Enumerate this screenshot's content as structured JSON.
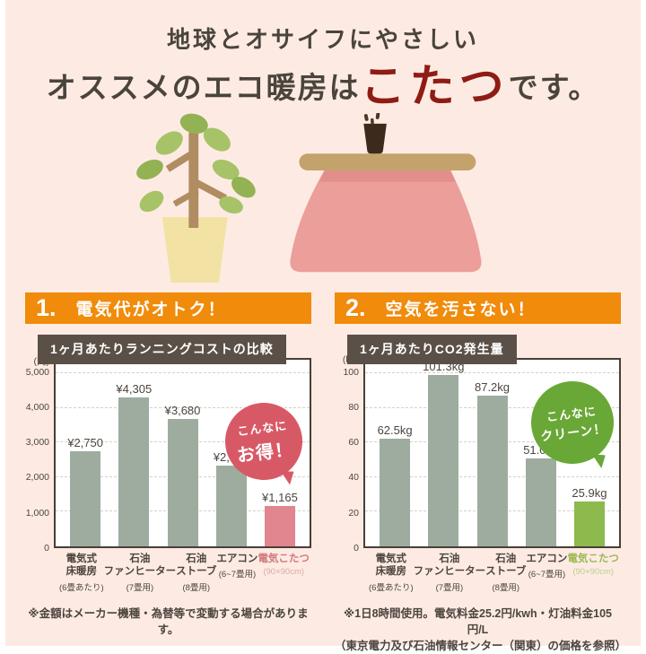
{
  "page": {
    "background": "#fdebe3",
    "accent_orange": "#f08b0b",
    "panel_brown": "#5b5047"
  },
  "header": {
    "line1": "地球とオサイフにやさしい",
    "line2_prefix": "オススメのエコ暖房は",
    "line2_highlight": "こたつ",
    "line2_suffix": "です。",
    "highlight_color": "#8e1c14"
  },
  "illustration": {
    "description": "potted plant beside a kotatsu (pink blanket, tan tabletop) with a steaming teacup on top",
    "colors": {
      "leaf": "#a6c368",
      "leaf_dark": "#93b254",
      "trunk": "#b08c62",
      "pot": "#f2e2a4",
      "blanket": "#ec9e9a",
      "tabletop": "#c4a26c",
      "cup": "#3c2b1d"
    }
  },
  "sections": [
    {
      "number": "1.",
      "banner_title": "電気代がオトク！",
      "banner_color": "#f08b0b",
      "chart_title": "1ヶ月あたりランニングコストの比較",
      "bubble_line1": "こんなに",
      "bubble_line2": "お得！",
      "bubble_color": "#d85966",
      "footnote1": "※金額はメーカー機種・為替等で変動する場合があります。"
    },
    {
      "number": "2.",
      "banner_title": "空気を汚さない！",
      "banner_color": "#f08b0b",
      "chart_title": "1ヶ月あたりCO2発生量",
      "bubble_line1": "こんなに",
      "bubble_line2": "クリーン！",
      "bubble_color": "#69a836",
      "footnote1": "※1日8時間使用。電気料金25.2円/kwh・灯油料金105円/L",
      "footnote2": "（東京電力及び石油情報センター（関東）の価格を参照）"
    }
  ],
  "chart_data": [
    {
      "type": "bar",
      "title": "1ヶ月あたりランニングコストの比較",
      "ylabel": "(円)",
      "categories": [
        [
          "電気式",
          "床暖房"
        ],
        [
          "石油",
          "ファンヒーター"
        ],
        [
          "石油",
          "ストーブ"
        ],
        [
          "エアコン"
        ],
        [
          "電気こたつ"
        ]
      ],
      "category_notes": [
        "(6畳あたり)",
        "(7畳用)",
        "(8畳用)",
        "(6~7畳用)",
        "(90×90cm)"
      ],
      "values": [
        2750,
        4305,
        3680,
        2335,
        1165
      ],
      "value_labels": [
        "¥2,750",
        "¥4,305",
        "¥3,680",
        "¥2,335",
        "¥1,165"
      ],
      "yticks": [
        0,
        1000,
        2000,
        3000,
        4000,
        5000
      ],
      "ytick_labels": [
        "0",
        "1,000",
        "2,000",
        "3,000",
        "4,000",
        "5,000"
      ],
      "ylim": [
        0,
        5400
      ],
      "grid": "horizontal dashed",
      "legend": "none",
      "bar_color": "#9dac9e",
      "highlight_index": 4,
      "highlight_color": "#e1858e"
    },
    {
      "type": "bar",
      "title": "1ヶ月あたりCO2発生量",
      "ylabel": "(kg)",
      "categories": [
        [
          "電気式",
          "床暖房"
        ],
        [
          "石油",
          "ファンヒーター"
        ],
        [
          "石油",
          "ストーブ"
        ],
        [
          "エアコン"
        ],
        [
          "電気こたつ"
        ]
      ],
      "category_notes": [
        "(6畳あたり)",
        "(7畳用)",
        "(8畳用)",
        "(6~7畳用)",
        "(90×90cm)"
      ],
      "values": [
        62.5,
        101.3,
        87.2,
        51.0,
        25.9
      ],
      "value_labels": [
        "62.5kg",
        "101.3kg",
        "87.2kg",
        "51.0kg",
        "25.9kg"
      ],
      "yticks": [
        0,
        20,
        40,
        60,
        80,
        100
      ],
      "ytick_labels": [
        "0",
        "20",
        "40",
        "60",
        "80",
        "100"
      ],
      "ylim": [
        0,
        108
      ],
      "grid": "horizontal dashed",
      "legend": "none",
      "bar_color": "#9dac9e",
      "highlight_index": 4,
      "highlight_color": "#8dba4c"
    }
  ]
}
